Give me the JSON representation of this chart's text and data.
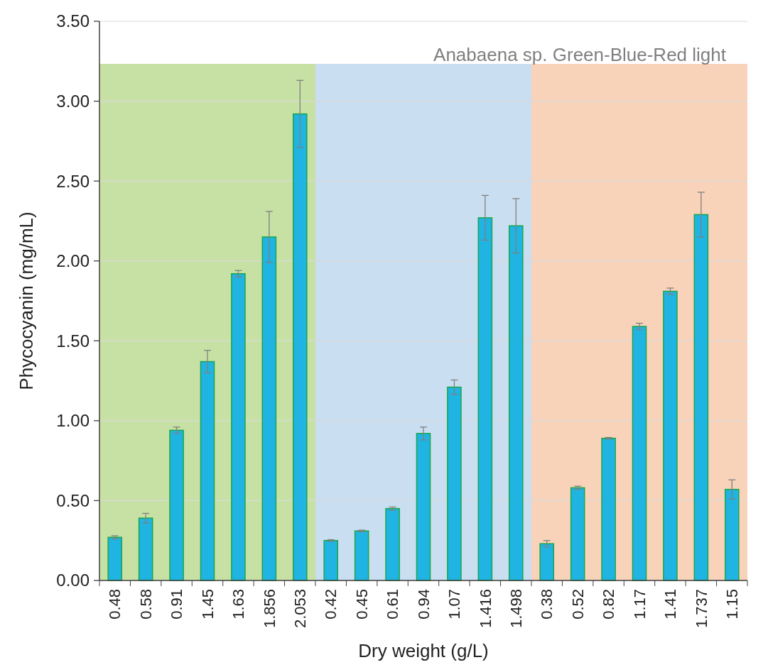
{
  "chart_data": {
    "type": "bar",
    "title": "Anabaena sp. Green-Blue-Red  light",
    "xlabel": "Dry weight (g/L)",
    "ylabel": "Phycocyanin (mg/mL)",
    "categories": [
      "0.48",
      "0.58",
      "0.91",
      "1.45",
      "1.63",
      "1.856",
      "2.053",
      "0.42",
      "0.45",
      "0.61",
      "0.94",
      "1.07",
      "1.416",
      "1.498",
      "0.38",
      "0.52",
      "0.82",
      "1.17",
      "1.41",
      "1.737",
      "1.15"
    ],
    "series": [
      {
        "color": "#1fb4e2",
        "values": [
          0.27,
          0.39,
          0.94,
          1.37,
          1.92,
          2.15,
          2.92,
          0.25,
          0.31,
          0.45,
          0.92,
          1.21,
          2.27,
          2.22,
          0.23,
          0.58,
          0.89,
          1.59,
          1.81,
          2.29,
          0.57
        ],
        "errors": [
          0.01,
          0.03,
          0.02,
          0.07,
          0.02,
          0.16,
          0.21,
          0.005,
          0.005,
          0.01,
          0.04,
          0.045,
          0.14,
          0.17,
          0.02,
          0.01,
          0.005,
          0.02,
          0.02,
          0.14,
          0.06
        ]
      }
    ],
    "ylim": [
      0,
      3.5
    ],
    "yticks": [
      {
        "value": 0,
        "label": "0.00"
      },
      {
        "value": 0.5,
        "label": "0.50"
      },
      {
        "value": 1,
        "label": "1.00"
      },
      {
        "value": 1.5,
        "label": "1.50"
      },
      {
        "value": 2,
        "label": "2.00"
      },
      {
        "value": 2.5,
        "label": "2.50"
      },
      {
        "value": 3,
        "label": "3.00"
      },
      {
        "value": 3.5,
        "label": "3.50"
      }
    ],
    "grid": "y",
    "bands": [
      {
        "axis": "x",
        "from": "0.48",
        "to": "2.053",
        "color": "#b9d98f"
      },
      {
        "axis": "x",
        "from": "0.42",
        "to": "1.498",
        "color": "#bcd6ee"
      },
      {
        "axis": "x",
        "from": "0.38",
        "to": "1.15",
        "color": "#f6c8a8"
      }
    ]
  }
}
